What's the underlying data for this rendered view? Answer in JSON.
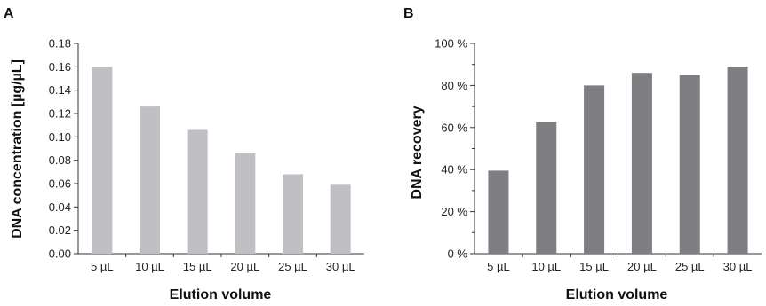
{
  "chart_data": [
    {
      "panel_label": "A",
      "type": "bar",
      "categories": [
        "5 µL",
        "10 µL",
        "15 µL",
        "20 µL",
        "25 µL",
        "30 µL"
      ],
      "values": [
        0.16,
        0.126,
        0.106,
        0.086,
        0.068,
        0.059
      ],
      "xlabel": "Elution volume",
      "ylabel": "DNA concentration [µg/µL]",
      "ylim": [
        0,
        0.18
      ],
      "yticks": [
        "0.00",
        "0.02",
        "0.04",
        "0.06",
        "0.08",
        "0.10",
        "0.12",
        "0.14",
        "0.16",
        "0.18"
      ],
      "bar_color": "#c0c0c4",
      "grid": false
    },
    {
      "panel_label": "B",
      "type": "bar",
      "categories": [
        "5 µL",
        "10 µL",
        "15 µL",
        "20 µL",
        "25 µL",
        "30 µL"
      ],
      "values": [
        39.5,
        62.5,
        80,
        86,
        85,
        89
      ],
      "xlabel": "Elution volume",
      "ylabel": "DNA recovery",
      "ylim": [
        0,
        100
      ],
      "yticks": [
        "0 %",
        "20 %",
        "40 %",
        "60 %",
        "80 %",
        "100 %"
      ],
      "bar_color": "#7f7f83",
      "grid": false
    }
  ]
}
